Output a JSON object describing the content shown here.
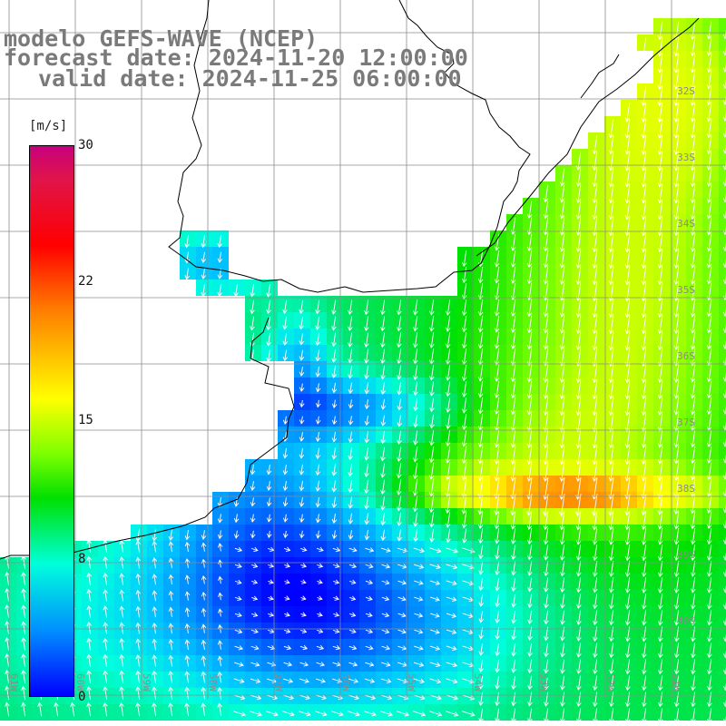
{
  "title": {
    "line1": "modelo GEFS-WAVE (NCEP)",
    "line2": "forecast date: 2024-11-20 12:00:00",
    "line3": "valid date: 2024-11-25 06:00:00"
  },
  "colorbar": {
    "unit": "[m/s]",
    "ticks": [
      "30",
      "22",
      "15",
      "8",
      "0"
    ]
  },
  "lat_labels": [
    "32S",
    "33S",
    "34S",
    "35S",
    "36S",
    "37S",
    "38S",
    "39S",
    "40S"
  ],
  "lon_labels": [
    "61W",
    "60W",
    "59W",
    "58W",
    "57W",
    "56W",
    "55W",
    "54W",
    "53W",
    "52W",
    "51W"
  ],
  "colors": {
    "land": "#ffffff",
    "coast": "#000000",
    "grid": "#8c8c8c",
    "arrows": "#ffffff",
    "title": "#7a7a7a"
  }
}
